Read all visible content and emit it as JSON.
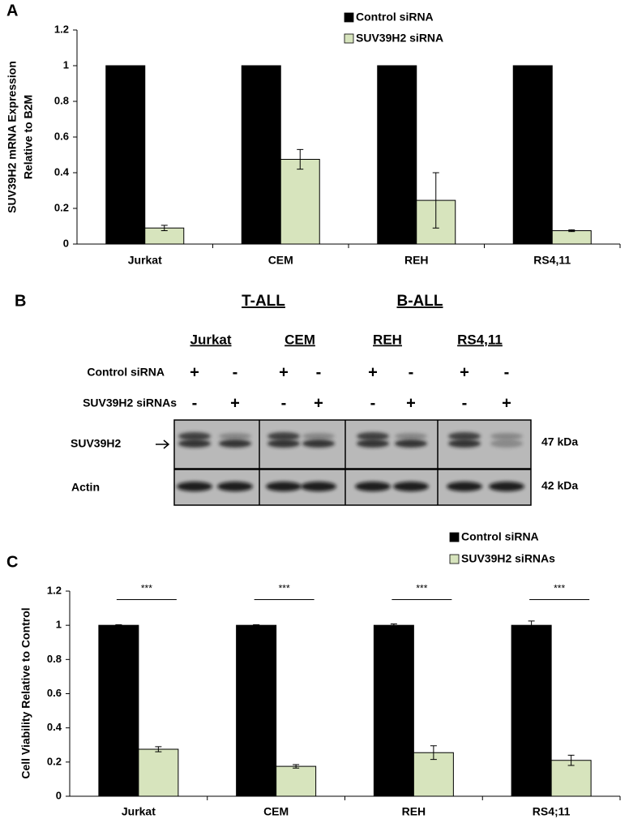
{
  "chart_data": [
    {
      "type": "bar",
      "panel": "A",
      "ylabel": [
        "SUV39H2 mRNA Expression",
        "Relative to B2M"
      ],
      "categories": [
        "Jurkat",
        "CEM",
        "REH",
        "RS4,11"
      ],
      "series": [
        {
          "name": "Control siRNA",
          "color": "#000000",
          "values": [
            1,
            1,
            1,
            1
          ]
        },
        {
          "name": "SUV39H2 siRNA",
          "color": "#d7e4bd",
          "values": [
            0.09,
            0.475,
            0.245,
            0.075
          ],
          "errors": [
            0.015,
            0.055,
            0.155,
            0.005
          ]
        }
      ],
      "ylim": [
        0,
        1.2
      ],
      "yticks": [
        0,
        0.2,
        0.4,
        0.6,
        0.8,
        1,
        1.2
      ]
    },
    {
      "type": "bar",
      "panel": "C",
      "ylabel": [
        "Cell Viability Relative to Control"
      ],
      "categories": [
        "Jurkat",
        "CEM",
        "REH",
        "RS4;11"
      ],
      "series": [
        {
          "name": "Control siRNA",
          "color": "#000000",
          "values": [
            1,
            1,
            1,
            1
          ],
          "errors": [
            0.003,
            0.003,
            0.008,
            0.025
          ]
        },
        {
          "name": "SUV39H2 siRNAs",
          "color": "#d7e4bd",
          "values": [
            0.275,
            0.175,
            0.255,
            0.21
          ],
          "errors": [
            0.015,
            0.01,
            0.04,
            0.03
          ]
        }
      ],
      "annotations": [
        "***",
        "***",
        "***",
        "***"
      ],
      "ylim": [
        0,
        1.2
      ],
      "yticks": [
        0,
        0.2,
        0.4,
        0.6,
        0.8,
        1,
        1.2
      ]
    }
  ],
  "blot": {
    "panel": "B",
    "groups": [
      "T-ALL",
      "B-ALL"
    ],
    "cell_lines": [
      "Jurkat",
      "CEM",
      "REH",
      "RS4,11"
    ],
    "rows": [
      {
        "label": "Control siRNA",
        "signs": [
          "+",
          "-",
          "+",
          "-",
          "+",
          "-",
          "+",
          "-"
        ]
      },
      {
        "label": "SUV39H2 siRNAs",
        "signs": [
          "-",
          "+",
          "-",
          "+",
          "-",
          "+",
          "-",
          "+"
        ]
      }
    ],
    "bands": [
      {
        "label": "SUV39H2",
        "size": "47 kDa"
      },
      {
        "label": "Actin",
        "size": "42 kDa"
      }
    ]
  }
}
